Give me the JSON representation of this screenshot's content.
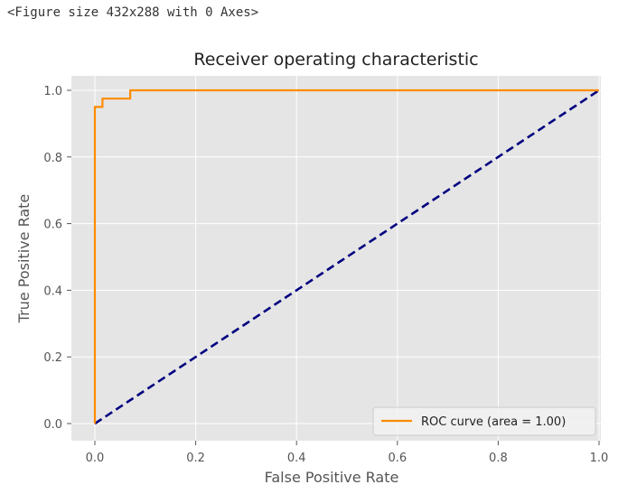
{
  "figure_note": "<Figure size 432x288 with 0 Axes>",
  "colors": {
    "plot_bg": "#e5e5e5",
    "grid": "#ffffff",
    "roc": "#ff8c00",
    "diag": "#000080",
    "tick": "#555555"
  },
  "chart_data": {
    "type": "line",
    "title": "Receiver operating characteristic",
    "xlabel": "False Positive Rate",
    "ylabel": "True Positive Rate",
    "xlim": [
      0.0,
      1.0
    ],
    "ylim": [
      0.0,
      1.0
    ],
    "xticks": [
      "0.0",
      "0.2",
      "0.4",
      "0.6",
      "0.8",
      "1.0"
    ],
    "yticks": [
      "0.0",
      "0.2",
      "0.4",
      "0.6",
      "0.8",
      "1.0"
    ],
    "grid": true,
    "legend_position": "lower-right",
    "series": [
      {
        "name": "ROC curve (area = 1.00)",
        "color": "#ff8c00",
        "style": "solid",
        "x": [
          0.0,
          0.0,
          0.0,
          0.015,
          0.015,
          0.07,
          0.07,
          1.0
        ],
        "y": [
          0.0,
          0.95,
          0.95,
          0.95,
          0.975,
          0.975,
          1.0,
          1.0
        ]
      },
      {
        "name": "",
        "color": "#000080",
        "style": "dashed",
        "x": [
          0.0,
          1.0
        ],
        "y": [
          0.0,
          1.0
        ]
      }
    ]
  }
}
